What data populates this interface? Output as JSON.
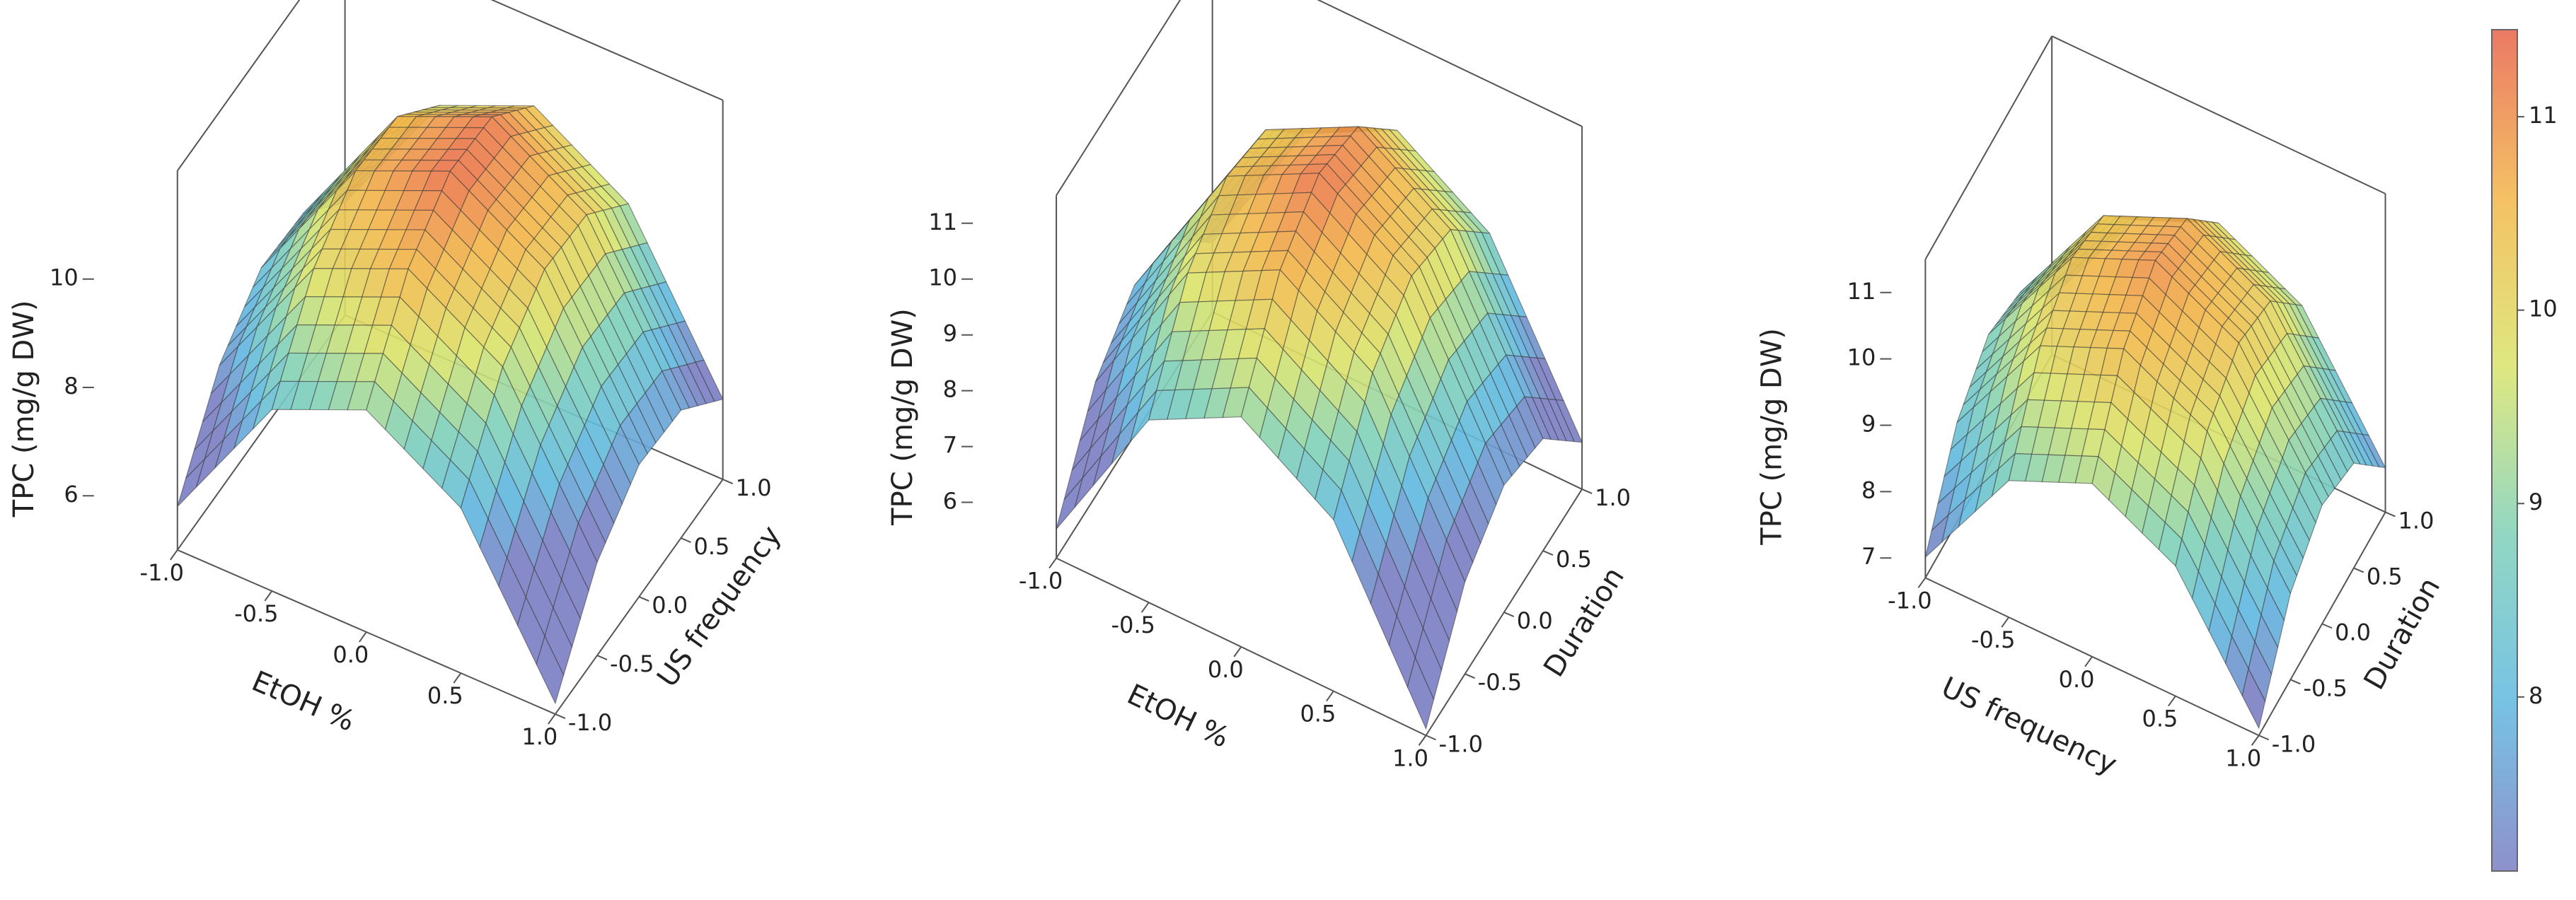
{
  "chart_data": [
    {
      "type": "surface",
      "x_label": "EtOH %",
      "y_label": "US frequency",
      "z_label": "TPC (mg/g DW)",
      "x": [
        -1,
        -0.5,
        0,
        0.5,
        1
      ],
      "y": [
        -1,
        -0.5,
        0,
        0.5,
        1
      ],
      "z": [
        [
          5.8,
          8.35,
          9.1,
          8.05,
          5.2
        ],
        [
          7.32,
          9.87,
          10.62,
          9.57,
          6.72
        ],
        [
          8.04,
          10.59,
          11.34,
          10.29,
          7.44
        ],
        [
          7.96,
          10.51,
          11.26,
          10.21,
          7.36
        ],
        [
          7.08,
          9.63,
          10.38,
          9.33,
          6.48
        ]
      ],
      "xlim": [
        -1,
        1
      ],
      "ylim": [
        -1,
        1
      ],
      "zlim": [
        5,
        12
      ],
      "xticks": [
        {
          "value": -1,
          "label": "-1.0"
        },
        {
          "value": -0.5,
          "label": "-0.5"
        },
        {
          "value": 0,
          "label": "0.0"
        },
        {
          "value": 0.5,
          "label": "0.5"
        },
        {
          "value": 1,
          "label": "1.0"
        }
      ],
      "yticks": [
        {
          "value": -1,
          "label": "-1.0"
        },
        {
          "value": -0.5,
          "label": "-0.5"
        },
        {
          "value": 0,
          "label": "0.0"
        },
        {
          "value": 0.5,
          "label": "0.5"
        },
        {
          "value": 1,
          "label": "1.0"
        }
      ],
      "zticks": [
        6,
        8,
        10
      ]
    },
    {
      "type": "surface",
      "x_label": "EtOH %",
      "y_label": "Duration",
      "z_label": "TPC (mg/g DW)",
      "x": [
        -1,
        -0.5,
        0,
        0.5,
        1
      ],
      "y": [
        -1,
        -0.5,
        0,
        0.5,
        1
      ],
      "z": [
        [
          5.52,
          8.27,
          9.12,
          8.07,
          5.12
        ],
        [
          7.05,
          9.8,
          10.65,
          9.6,
          6.65
        ],
        [
          7.68,
          10.43,
          11.28,
          10.23,
          7.28
        ],
        [
          7.41,
          10.16,
          11.01,
          9.96,
          7.01
        ],
        [
          6.24,
          8.99,
          9.84,
          8.79,
          5.84
        ]
      ],
      "xlim": [
        -1,
        1
      ],
      "ylim": [
        -1,
        1
      ],
      "zlim": [
        5,
        11.5
      ],
      "xticks": [
        {
          "value": -1,
          "label": "-1.0"
        },
        {
          "value": -0.5,
          "label": "-0.5"
        },
        {
          "value": 0,
          "label": "0.0"
        },
        {
          "value": 0.5,
          "label": "0.5"
        },
        {
          "value": 1,
          "label": "1.0"
        }
      ],
      "yticks": [
        {
          "value": -1,
          "label": "-1.0"
        },
        {
          "value": -0.5,
          "label": "-0.5"
        },
        {
          "value": 0,
          "label": "0.0"
        },
        {
          "value": 0.5,
          "label": "0.5"
        },
        {
          "value": 1,
          "label": "1.0"
        }
      ],
      "zticks": [
        6,
        7,
        8,
        9,
        10,
        11
      ]
    },
    {
      "type": "surface",
      "x_label": "US frequency",
      "y_label": "Duration",
      "z_label": "TPC (mg/g DW)",
      "x": [
        -1,
        -0.5,
        0,
        0.5,
        1
      ],
      "y": [
        -1,
        -0.5,
        0,
        0.5,
        1
      ],
      "z": [
        [
          7.01,
          8.76,
          9.31,
          8.66,
          6.81
        ],
        [
          8.2,
          9.95,
          10.5,
          9.85,
          8.0
        ],
        [
          8.69,
          10.44,
          10.99,
          10.34,
          8.49
        ],
        [
          8.48,
          10.23,
          10.78,
          10.13,
          8.28
        ],
        [
          7.57,
          9.32,
          9.87,
          9.22,
          7.37
        ]
      ],
      "xlim": [
        -1,
        1
      ],
      "ylim": [
        -1,
        1
      ],
      "zlim": [
        6.7,
        11.5
      ],
      "xticks": [
        {
          "value": -1,
          "label": "-1.0"
        },
        {
          "value": -0.5,
          "label": "-0.5"
        },
        {
          "value": 0,
          "label": "0.0"
        },
        {
          "value": 0.5,
          "label": "0.5"
        },
        {
          "value": 1,
          "label": "1.0"
        }
      ],
      "yticks": [
        {
          "value": -1,
          "label": "-1.0"
        },
        {
          "value": -0.5,
          "label": "-0.5"
        },
        {
          "value": 0,
          "label": "0.0"
        },
        {
          "value": 0.5,
          "label": "0.5"
        },
        {
          "value": 1,
          "label": "1.0"
        }
      ],
      "zticks": [
        7,
        8,
        9,
        10,
        11
      ]
    }
  ],
  "colorbar": {
    "colors": [
      "#7a7dc2",
      "#5fb8e0",
      "#7fd0b8",
      "#d9e46a",
      "#f2b648",
      "#e8624a"
    ],
    "lim": [
      7.1,
      11.45
    ],
    "ticks": [
      8,
      9,
      10,
      11
    ]
  }
}
